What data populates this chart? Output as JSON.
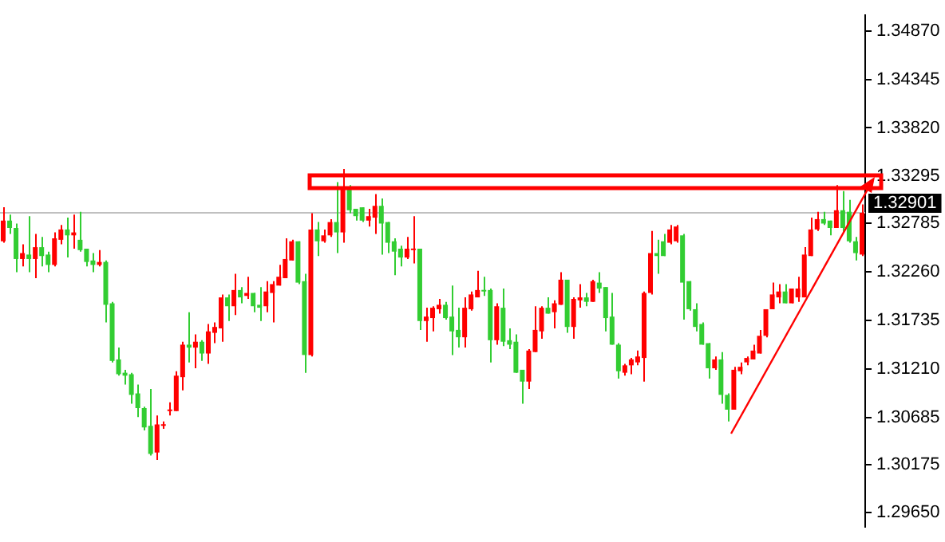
{
  "chart_data": {
    "type": "candlestick",
    "categories": [
      null,
      null,
      null,
      null,
      null,
      null,
      null,
      null,
      null,
      null,
      null,
      null,
      null,
      null,
      null,
      null,
      null,
      null,
      null,
      null,
      null,
      null,
      null,
      null,
      null,
      null,
      null,
      null,
      null,
      null,
      null,
      null,
      null,
      null,
      null,
      null,
      null,
      null,
      null,
      null,
      null,
      null,
      null,
      null,
      null,
      null,
      null,
      null,
      null,
      null,
      null,
      null,
      null,
      null,
      null,
      null,
      null,
      null,
      null,
      null,
      null,
      null,
      null,
      null,
      null,
      null,
      null,
      null,
      null,
      null,
      null,
      null,
      null,
      null,
      null,
      null,
      null,
      null,
      null,
      null,
      null,
      null,
      null,
      null,
      null,
      null,
      null,
      null,
      null,
      null,
      null,
      null,
      null,
      null,
      null,
      null,
      null,
      null,
      null,
      null,
      null,
      null,
      null,
      null,
      null,
      null,
      null,
      null,
      null,
      null,
      null,
      null,
      null,
      null,
      null,
      null,
      null,
      null,
      null,
      null,
      null,
      null,
      null,
      null,
      null,
      null,
      null,
      null,
      null,
      null,
      null,
      null,
      null,
      null,
      null
    ],
    "ohlc": [
      [
        1.32592,
        1.3296,
        1.32576,
        1.32816
      ],
      [
        1.32816,
        1.3288,
        1.32672,
        1.32736
      ],
      [
        1.32736,
        1.32784,
        1.32256,
        1.324
      ],
      [
        1.324,
        1.3256,
        1.3232,
        1.32464
      ],
      [
        1.32448,
        1.32864,
        1.32256,
        1.324
      ],
      [
        1.324,
        1.32672,
        1.32192,
        1.32528
      ],
      [
        1.32528,
        1.3264,
        1.3232,
        1.32432
      ],
      [
        1.32448,
        1.3248,
        1.32256,
        1.32336
      ],
      [
        1.32336,
        1.32688,
        1.3232,
        1.32624
      ],
      [
        1.32608,
        1.32768,
        1.3256,
        1.3272
      ],
      [
        1.3272,
        1.32848,
        1.32416,
        1.32656
      ],
      [
        1.32656,
        1.3288,
        1.32512,
        1.32688
      ],
      [
        1.32608,
        1.32912,
        1.3248,
        1.32496
      ],
      [
        1.32512,
        1.32512,
        1.3232,
        1.32368
      ],
      [
        1.32384,
        1.32464,
        1.32256,
        1.32336
      ],
      [
        1.32336,
        1.32496,
        1.3232,
        1.32368
      ],
      [
        1.32368,
        1.32384,
        1.31712,
        1.31904
      ],
      [
        1.3192,
        1.31936,
        1.3128,
        1.31296
      ],
      [
        1.31312,
        1.3144,
        1.31136,
        1.31152
      ],
      [
        1.31168,
        1.312,
        1.3104,
        1.31136
      ],
      [
        1.31152,
        1.31168,
        1.30832,
        1.30928
      ],
      [
        1.30944,
        1.3104,
        1.30688,
        1.30784
      ],
      [
        1.30784,
        1.308,
        1.30544,
        1.30576
      ],
      [
        1.30592,
        1.30992,
        1.30272,
        1.30288
      ],
      [
        1.30304,
        1.30704,
        1.30224,
        1.30608
      ],
      [
        1.30592,
        1.3064,
        1.3056,
        1.30608
      ],
      [
        1.30752,
        1.30848,
        1.30704,
        1.30768
      ],
      [
        1.30752,
        1.31184,
        1.30752,
        1.31136
      ],
      [
        1.3112,
        1.31504,
        1.30976,
        1.31472
      ],
      [
        1.31472,
        1.31824,
        1.3128,
        1.3144
      ],
      [
        1.3144,
        1.31584,
        1.31216,
        1.31504
      ],
      [
        1.31504,
        1.3152,
        1.31296,
        1.31376
      ],
      [
        1.31376,
        1.31696,
        1.31264,
        1.31616
      ],
      [
        1.316,
        1.31712,
        1.31488,
        1.31664
      ],
      [
        1.31648,
        1.32016,
        1.31504,
        1.31984
      ],
      [
        1.31984,
        1.32016,
        1.31728,
        1.31888
      ],
      [
        1.31888,
        1.3224,
        1.31792,
        1.32064
      ],
      [
        1.32064,
        1.32096,
        1.3192,
        1.31984
      ],
      [
        1.32,
        1.32208,
        1.31968,
        1.32032
      ],
      [
        1.32032,
        1.32032,
        1.31824,
        1.31888
      ],
      [
        1.31904,
        1.32096,
        1.31728,
        1.31872
      ],
      [
        1.31888,
        1.3216,
        1.31824,
        1.32048
      ],
      [
        1.32032,
        1.3216,
        1.31712,
        1.32128
      ],
      [
        1.32112,
        1.32336,
        1.32112,
        1.32208
      ],
      [
        1.32192,
        1.32624,
        1.32192,
        1.324
      ],
      [
        1.32384,
        1.32608,
        1.32384,
        1.32592
      ],
      [
        1.32592,
        1.32592,
        1.32128,
        1.32144
      ],
      [
        1.3216,
        1.3224,
        1.31168,
        1.3136
      ],
      [
        1.3136,
        1.32896,
        1.31344,
        1.3272
      ],
      [
        1.3272,
        1.328,
        1.32432,
        1.32592
      ],
      [
        1.32592,
        1.3272,
        1.32576,
        1.32656
      ],
      [
        1.32656,
        1.32832,
        1.3264,
        1.328
      ],
      [
        1.328,
        1.33232,
        1.32464,
        1.32688
      ],
      [
        1.32688,
        1.33376,
        1.32576,
        1.33184
      ],
      [
        1.33184,
        1.332,
        1.32896,
        1.32928
      ],
      [
        1.32944,
        1.32944,
        1.32816,
        1.32864
      ],
      [
        1.3296,
        1.3296,
        1.328,
        1.32816
      ],
      [
        1.32816,
        1.32944,
        1.32752,
        1.32864
      ],
      [
        1.32848,
        1.33104,
        1.32672,
        1.32976
      ],
      [
        1.32976,
        1.33056,
        1.32448,
        1.32784
      ],
      [
        1.328,
        1.328,
        1.32464,
        1.32576
      ],
      [
        1.32592,
        1.32624,
        1.32224,
        1.3248
      ],
      [
        1.32512,
        1.32544,
        1.3232,
        1.32416
      ],
      [
        1.32416,
        1.3264,
        1.324,
        1.32512
      ],
      [
        1.32496,
        1.32864,
        1.32352,
        1.32512
      ],
      [
        1.32512,
        1.32512,
        1.31632,
        1.31728
      ],
      [
        1.31728,
        1.31872,
        1.31504,
        1.31776
      ],
      [
        1.3176,
        1.31888,
        1.31616,
        1.31872
      ],
      [
        1.31856,
        1.31968,
        1.31808,
        1.31904
      ],
      [
        1.31904,
        1.31936,
        1.31744,
        1.3176
      ],
      [
        1.31776,
        1.32112,
        1.3136,
        1.31616
      ],
      [
        1.31632,
        1.31872,
        1.3144,
        1.31552
      ],
      [
        1.31552,
        1.31984,
        1.3144,
        1.31872
      ],
      [
        1.31856,
        1.32048,
        1.3184,
        1.32016
      ],
      [
        1.31984,
        1.32272,
        1.31984,
        1.32064
      ],
      [
        1.32064,
        1.32208,
        1.32,
        1.32048
      ],
      [
        1.32064,
        1.3208,
        1.3128,
        1.3152
      ],
      [
        1.3152,
        1.3192,
        1.31472,
        1.31888
      ],
      [
        1.31872,
        1.3208,
        1.31456,
        1.31504
      ],
      [
        1.3152,
        1.31648,
        1.31424,
        1.31472
      ],
      [
        1.31504,
        1.31584,
        1.31168,
        1.31168
      ],
      [
        1.312,
        1.312,
        1.30832,
        1.31072
      ],
      [
        1.31072,
        1.31424,
        1.30992,
        1.31408
      ],
      [
        1.31392,
        1.31888,
        1.31392,
        1.31632
      ],
      [
        1.31616,
        1.31888,
        1.31536,
        1.31872
      ],
      [
        1.31872,
        1.31984,
        1.31808,
        1.31808
      ],
      [
        1.31824,
        1.31952,
        1.31648,
        1.3192
      ],
      [
        1.31904,
        1.32256,
        1.31904,
        1.32176
      ],
      [
        1.32176,
        1.32176,
        1.316,
        1.31664
      ],
      [
        1.31664,
        1.31984,
        1.31536,
        1.31968
      ],
      [
        1.31952,
        1.32128,
        1.31872,
        1.31984
      ],
      [
        1.31984,
        1.32032,
        1.31888,
        1.31936
      ],
      [
        1.31936,
        1.32176,
        1.31936,
        1.3216
      ],
      [
        1.32144,
        1.32256,
        1.32032,
        1.3208
      ],
      [
        1.32096,
        1.32096,
        1.31616,
        1.3176
      ],
      [
        1.31776,
        1.32032,
        1.31472,
        1.31472
      ],
      [
        1.31472,
        1.31488,
        1.31104,
        1.31184
      ],
      [
        1.31168,
        1.31264,
        1.31136,
        1.31248
      ],
      [
        1.31248,
        1.31328,
        1.31152,
        1.31312
      ],
      [
        1.3128,
        1.31408,
        1.31248,
        1.31344
      ],
      [
        1.31328,
        1.32048,
        1.31072,
        1.32032
      ],
      [
        1.32032,
        1.32704,
        1.32016,
        1.32464
      ],
      [
        1.32464,
        1.32608,
        1.3224,
        1.32432
      ],
      [
        1.32592,
        1.32672,
        1.32432,
        1.32432
      ],
      [
        1.32576,
        1.32768,
        1.3256,
        1.3272
      ],
      [
        1.32592,
        1.32768,
        1.32576,
        1.32752
      ],
      [
        1.32656,
        1.32672,
        1.31744,
        1.32144
      ],
      [
        1.3216,
        1.3216,
        1.3184,
        1.31856
      ],
      [
        1.31856,
        1.3192,
        1.31616,
        1.31664
      ],
      [
        1.31696,
        1.31712,
        1.31472,
        1.31472
      ],
      [
        1.31488,
        1.31488,
        1.31104,
        1.31216
      ],
      [
        1.31216,
        1.31344,
        1.312,
        1.31312
      ],
      [
        1.31312,
        1.31392,
        1.30832,
        1.30928
      ],
      [
        1.30928,
        1.30944,
        1.3064,
        1.30768
      ],
      [
        1.30768,
        1.31232,
        1.30768,
        1.312
      ],
      [
        1.31184,
        1.3128,
        1.31152,
        1.31232
      ],
      [
        1.3128,
        1.31344,
        1.31248,
        1.31328
      ],
      [
        1.31312,
        1.31472,
        1.31312,
        1.31408
      ],
      [
        1.31376,
        1.31632,
        1.31376,
        1.31568
      ],
      [
        1.31568,
        1.31856,
        1.31552,
        1.31856
      ],
      [
        1.31856,
        1.32144,
        1.31856,
        1.32016
      ],
      [
        1.31984,
        1.32128,
        1.3192,
        1.32048
      ],
      [
        1.32048,
        1.32128,
        1.3192,
        1.3192
      ],
      [
        1.3192,
        1.3208,
        1.3192,
        1.3208
      ],
      [
        1.31984,
        1.32208,
        1.31936,
        1.3208
      ],
      [
        1.31984,
        1.32528,
        1.31984,
        1.32448
      ],
      [
        1.32432,
        1.32848,
        1.32432,
        1.3272
      ],
      [
        1.3272,
        1.32912,
        1.32704,
        1.32832
      ],
      [
        1.32832,
        1.32912,
        1.32768,
        1.32784
      ],
      [
        1.32816,
        1.32816,
        1.32656,
        1.32736
      ],
      [
        1.32736,
        1.332,
        1.32736,
        1.32928
      ],
      [
        1.32928,
        1.33136,
        1.32688,
        1.32736
      ],
      [
        1.32912,
        1.3304,
        1.32576,
        1.32592
      ],
      [
        1.32592,
        1.3264,
        1.32384,
        1.32464
      ],
      [
        1.32448,
        1.32992,
        1.32432,
        1.32901
      ]
    ],
    "colors": [
      "#ff0000",
      "#32cd32",
      "#32cd32",
      "#ff0000",
      "#32cd32",
      "#ff0000",
      "#32cd32",
      "#32cd32",
      "#ff0000",
      "#ff0000",
      "#32cd32",
      "#ff0000",
      "#32cd32",
      "#32cd32",
      "#32cd32",
      "#ff0000",
      "#32cd32",
      "#32cd32",
      "#32cd32",
      "#32cd32",
      "#32cd32",
      "#32cd32",
      "#32cd32",
      "#32cd32",
      "#ff0000",
      "#ff0000",
      "#ff0000",
      "#ff0000",
      "#ff0000",
      "#32cd32",
      "#ff0000",
      "#32cd32",
      "#ff0000",
      "#ff0000",
      "#ff0000",
      "#32cd32",
      "#ff0000",
      "#32cd32",
      "#ff0000",
      "#32cd32",
      "#32cd32",
      "#ff0000",
      "#ff0000",
      "#ff0000",
      "#ff0000",
      "#ff0000",
      "#32cd32",
      "#32cd32",
      "#ff0000",
      "#32cd32",
      "#ff0000",
      "#ff0000",
      "#32cd32",
      "#ff0000",
      "#32cd32",
      "#32cd32",
      "#32cd32",
      "#ff0000",
      "#ff0000",
      "#32cd32",
      "#32cd32",
      "#32cd32",
      "#32cd32",
      "#ff0000",
      "#ff0000",
      "#32cd32",
      "#ff0000",
      "#ff0000",
      "#ff0000",
      "#32cd32",
      "#32cd32",
      "#32cd32",
      "#ff0000",
      "#ff0000",
      "#ff0000",
      "#32cd32",
      "#32cd32",
      "#ff0000",
      "#32cd32",
      "#32cd32",
      "#32cd32",
      "#32cd32",
      "#ff0000",
      "#ff0000",
      "#ff0000",
      "#32cd32",
      "#ff0000",
      "#ff0000",
      "#32cd32",
      "#ff0000",
      "#ff0000",
      "#32cd32",
      "#ff0000",
      "#32cd32",
      "#32cd32",
      "#32cd32",
      "#32cd32",
      "#ff0000",
      "#ff0000",
      "#ff0000",
      "#ff0000",
      "#ff0000",
      "#32cd32",
      "#32cd32",
      "#ff0000",
      "#ff0000",
      "#32cd32",
      "#32cd32",
      "#32cd32",
      "#32cd32",
      "#32cd32",
      "#ff0000",
      "#32cd32",
      "#32cd32",
      "#ff0000",
      "#ff0000",
      "#ff0000",
      "#ff0000",
      "#ff0000",
      "#ff0000",
      "#ff0000",
      "#ff0000",
      "#32cd32",
      "#ff0000",
      "#ff0000",
      "#ff0000",
      "#ff0000",
      "#ff0000",
      "#32cd32",
      "#32cd32",
      "#ff0000",
      "#32cd32",
      "#32cd32",
      "#32cd32",
      "#ff0000"
    ],
    "ylim": [
      1.295,
      1.3504
    ],
    "yticks": [
      {
        "value": 1.2965,
        "label": "1.29650"
      },
      {
        "value": 1.30175,
        "label": "1.30175"
      },
      {
        "value": 1.30685,
        "label": "1.30685"
      },
      {
        "value": 1.3121,
        "label": "1.31210"
      },
      {
        "value": 1.31735,
        "label": "1.31735"
      },
      {
        "value": 1.3226,
        "label": "1.32260"
      },
      {
        "value": 1.32785,
        "label": "1.32785"
      },
      {
        "value": 1.33295,
        "label": "1.33295"
      },
      {
        "value": 1.3382,
        "label": "1.33820"
      },
      {
        "value": 1.34345,
        "label": "1.34345"
      },
      {
        "value": 1.3487,
        "label": "1.34870"
      }
    ],
    "ref_lines": [
      {
        "axis": "y",
        "value": 1.32901,
        "label": "1.32901",
        "color": "#c0c0c0"
      }
    ],
    "tick_labels": "y",
    "grid": false
  }
}
